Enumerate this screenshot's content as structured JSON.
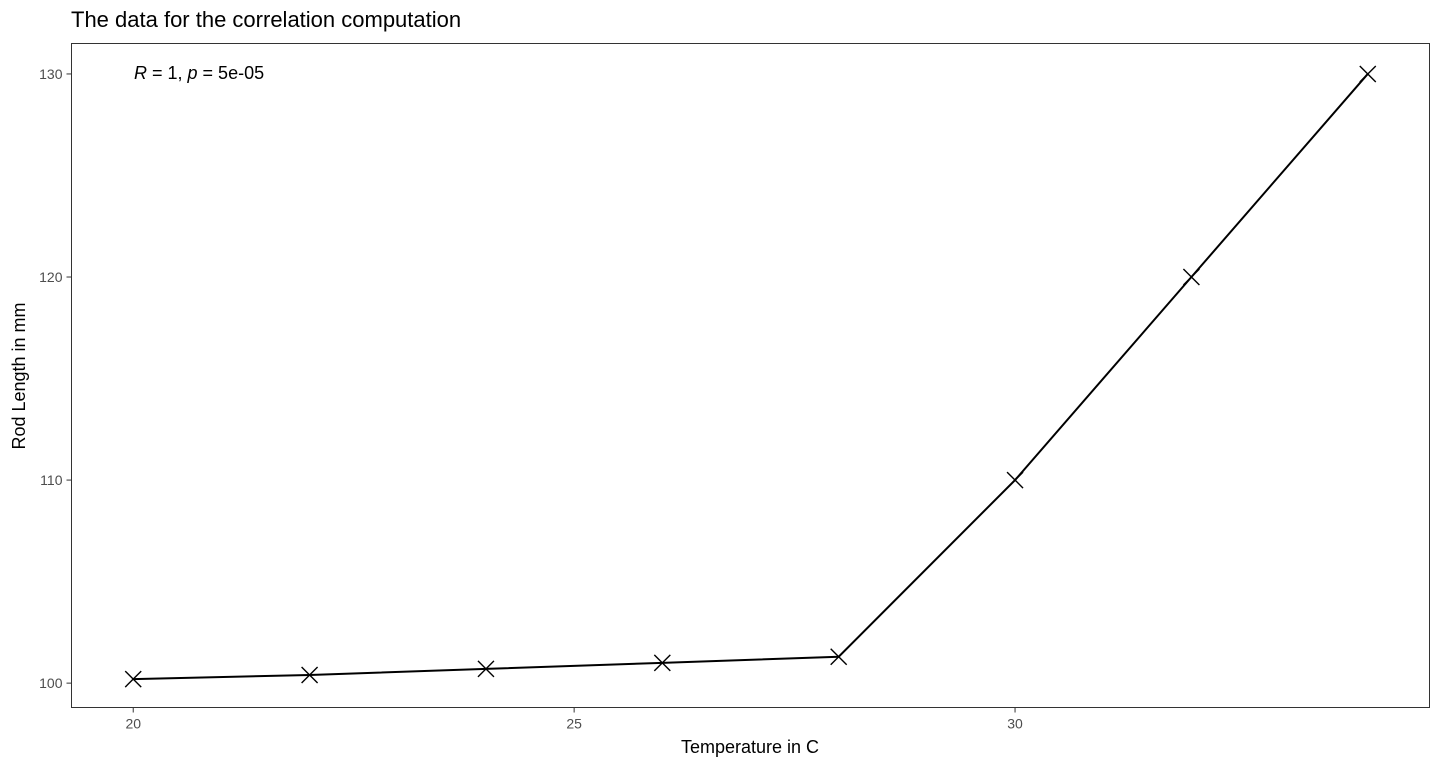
{
  "chart_data": {
    "type": "line",
    "title": "The data for the correlation computation",
    "xlabel": "Temperature in C",
    "ylabel": "Rod Length in mm",
    "x_ticks": [
      20,
      25,
      30
    ],
    "y_ticks": [
      100,
      110,
      120,
      130
    ],
    "xlim": [
      19.3,
      34.7
    ],
    "ylim": [
      98.8,
      131.5
    ],
    "grid": false,
    "marker": "x",
    "annotation": {
      "r_symbol": "R",
      "r_value": " = 1, ",
      "p_symbol": "p",
      "p_value": " = 5e-05"
    },
    "series": [
      {
        "x": [
          20,
          22,
          24,
          26,
          28,
          30,
          32,
          34
        ],
        "y": [
          100.2,
          100.4,
          100.7,
          101.0,
          101.3,
          110,
          120,
          130
        ]
      }
    ]
  }
}
